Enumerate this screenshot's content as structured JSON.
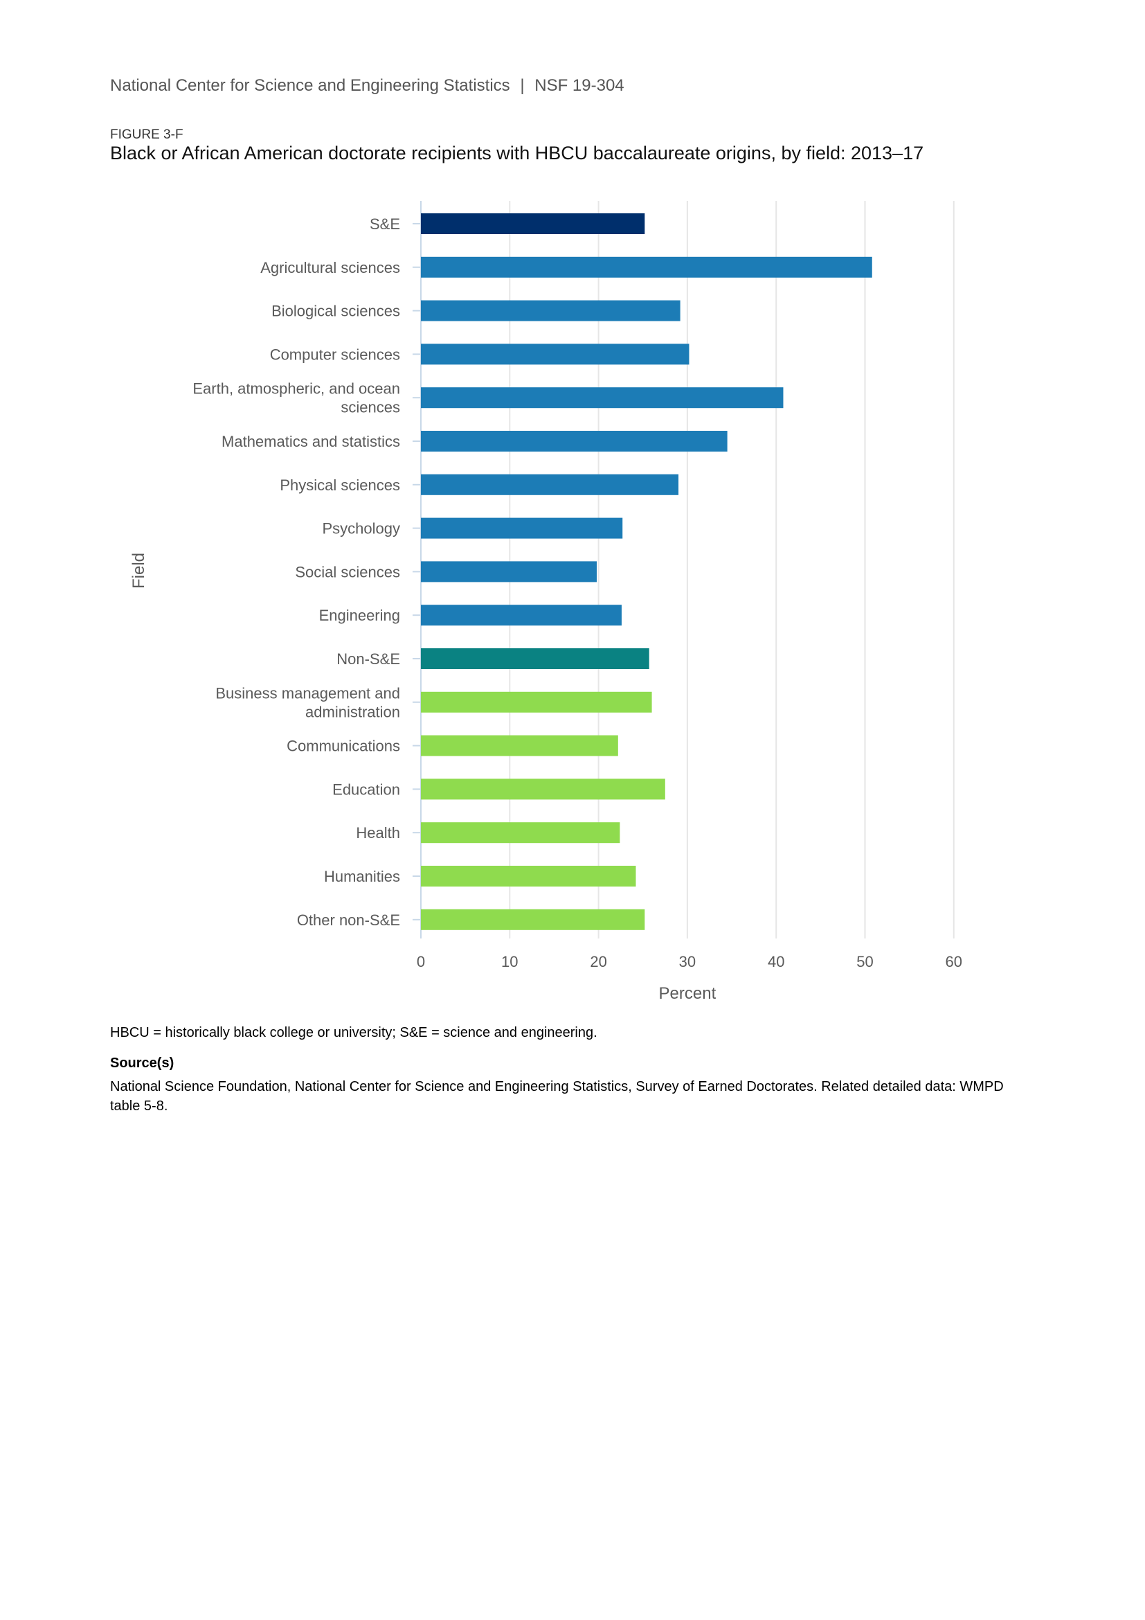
{
  "header": {
    "org": "National Center for Science and Engineering Statistics",
    "separator": "|",
    "report": "NSF 19-304"
  },
  "figure": {
    "label": "FIGURE 3-F",
    "title": "Black or African American doctorate recipients with HBCU baccalaureate origins, by field: 2013–17"
  },
  "chart_data": {
    "type": "bar",
    "orientation": "horizontal",
    "title": "Black or African American doctorate recipients with HBCU baccalaureate origins, by field: 2013–17",
    "xlabel": "Percent",
    "ylabel": "Field",
    "xlim": [
      0,
      60
    ],
    "xticks": [
      0,
      10,
      20,
      30,
      40,
      50,
      60
    ],
    "grid": true,
    "categories": [
      "S&E",
      "Agricultural sciences",
      "Biological sciences",
      "Computer sciences",
      "Earth, atmospheric, and ocean sciences",
      "Mathematics and statistics",
      "Physical sciences",
      "Psychology",
      "Social sciences",
      "Engineering",
      "Non-S&E",
      "Business management and administration",
      "Communications",
      "Education",
      "Health",
      "Humanities",
      "Other non-S&E"
    ],
    "category_lines": [
      [
        "S&E"
      ],
      [
        "Agricultural sciences"
      ],
      [
        "Biological sciences"
      ],
      [
        "Computer sciences"
      ],
      [
        "Earth, atmospheric, and ocean",
        "sciences"
      ],
      [
        "Mathematics and statistics"
      ],
      [
        "Physical sciences"
      ],
      [
        "Psychology"
      ],
      [
        "Social sciences"
      ],
      [
        "Engineering"
      ],
      [
        "Non-S&E"
      ],
      [
        "Business management and",
        "administration"
      ],
      [
        "Communications"
      ],
      [
        "Education"
      ],
      [
        "Health"
      ],
      [
        "Humanities"
      ],
      [
        "Other non-S&E"
      ]
    ],
    "values": [
      25.2,
      50.8,
      29.2,
      30.2,
      40.8,
      34.5,
      29.0,
      22.7,
      19.8,
      22.6,
      25.7,
      26.0,
      22.2,
      27.5,
      22.4,
      24.2,
      25.2
    ],
    "groups": [
      "se-total",
      "se",
      "se",
      "se",
      "se",
      "se",
      "se",
      "se",
      "se",
      "se",
      "nonse-total",
      "nonse",
      "nonse",
      "nonse",
      "nonse",
      "nonse",
      "nonse"
    ],
    "colors": {
      "se-total": "#002f6c",
      "se": "#1c7cb6",
      "nonse-total": "#0a8282",
      "nonse": "#8fdb4e",
      "grid": "#e6e6e6",
      "axis": "#c8d8e8",
      "text": "#5a5a5a"
    }
  },
  "notes": {
    "abbrev": "HBCU = historically black college or university; S&E = science and engineering.",
    "source_heading": "Source(s)",
    "source_text": "National Science Foundation, National Center for Science and Engineering Statistics, Survey of Earned Doctorates. Related detailed data: WMPD table 5-8."
  }
}
